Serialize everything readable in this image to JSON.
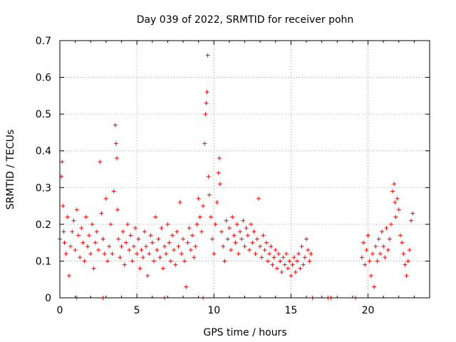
{
  "chart_data": {
    "type": "scatter",
    "title": "Day 039 of 2022, SRMTID for receiver pohn",
    "xlabel": "GPS time / hours",
    "ylabel": "SRMTID / TECUs",
    "xlim": [
      0,
      24
    ],
    "ylim": [
      0,
      0.7
    ],
    "xticks": [
      0,
      5,
      10,
      15,
      20
    ],
    "xtick_labels": [
      "0",
      "5",
      "10",
      "15",
      "20"
    ],
    "yticks": [
      0,
      0.1,
      0.2,
      0.3,
      0.4,
      0.5,
      0.6,
      0.7
    ],
    "ytick_labels": [
      "0",
      "0.1",
      "0.2",
      "0.3",
      "0.4",
      "0.5",
      "0.6",
      "0.7"
    ],
    "grid": true,
    "marker": "+",
    "marker_color": "#ff0000",
    "series": [
      {
        "name": "SRMTID",
        "x": [
          0.0,
          0.1,
          0.15,
          0.2,
          0.25,
          0.3,
          0.4,
          0.5,
          0.6,
          0.7,
          0.8,
          0.9,
          1.0,
          1.1,
          1.2,
          1.3,
          1.4,
          1.5,
          1.6,
          1.7,
          1.8,
          1.9,
          2.0,
          2.1,
          2.2,
          2.3,
          2.4,
          2.5,
          2.6,
          2.7,
          2.8,
          2.9,
          3.0,
          3.1,
          3.2,
          3.3,
          3.4,
          3.5,
          3.6,
          3.65,
          3.7,
          3.75,
          3.8,
          3.9,
          4.0,
          4.1,
          4.2,
          4.3,
          4.4,
          4.5,
          4.6,
          4.7,
          4.8,
          4.9,
          5.0,
          5.1,
          5.2,
          5.3,
          5.4,
          5.5,
          5.6,
          5.7,
          5.8,
          5.9,
          6.0,
          6.1,
          6.2,
          6.3,
          6.4,
          6.5,
          6.6,
          6.7,
          6.8,
          6.9,
          7.0,
          7.1,
          7.2,
          7.3,
          7.4,
          7.5,
          7.6,
          7.7,
          7.8,
          7.9,
          8.0,
          8.1,
          8.2,
          8.3,
          8.4,
          8.5,
          8.6,
          8.7,
          8.8,
          8.9,
          9.0,
          9.1,
          9.2,
          9.3,
          9.4,
          9.45,
          9.5,
          9.55,
          9.6,
          9.65,
          9.7,
          9.8,
          9.9,
          10.0,
          10.1,
          10.2,
          10.3,
          10.35,
          10.4,
          10.5,
          10.6,
          10.7,
          10.8,
          10.9,
          11.0,
          11.1,
          11.2,
          11.3,
          11.4,
          11.5,
          11.6,
          11.7,
          11.8,
          11.9,
          12.0,
          12.1,
          12.2,
          12.3,
          12.4,
          12.5,
          12.6,
          12.7,
          12.8,
          12.9,
          13.0,
          13.1,
          13.2,
          13.3,
          13.4,
          13.5,
          13.6,
          13.7,
          13.8,
          13.9,
          14.0,
          14.1,
          14.2,
          14.3,
          14.4,
          14.5,
          14.6,
          14.7,
          14.8,
          14.9,
          15.0,
          15.1,
          15.2,
          15.3,
          15.4,
          15.5,
          15.6,
          15.7,
          15.8,
          15.9,
          16.0,
          16.1,
          16.2,
          16.3,
          19.6,
          19.7,
          19.8,
          19.9,
          20.0,
          20.1,
          20.2,
          20.3,
          20.4,
          20.5,
          20.6,
          20.7,
          20.8,
          20.9,
          21.0,
          21.1,
          21.2,
          21.3,
          21.4,
          21.5,
          21.6,
          21.7,
          21.75,
          21.8,
          21.9,
          22.0,
          22.1,
          22.2,
          22.3,
          22.4,
          22.5,
          22.6,
          22.7,
          22.8,
          22.9
        ],
        "y": [
          0.16,
          0.33,
          0.37,
          0.25,
          0.18,
          0.15,
          0.12,
          0.22,
          0.06,
          0.14,
          0.18,
          0.21,
          0.13,
          0.24,
          0.17,
          0.11,
          0.19,
          0.15,
          0.1,
          0.22,
          0.14,
          0.17,
          0.12,
          0.2,
          0.08,
          0.15,
          0.18,
          0.13,
          0.37,
          0.23,
          0.16,
          0.12,
          0.27,
          0.1,
          0.14,
          0.2,
          0.12,
          0.29,
          0.47,
          0.42,
          0.38,
          0.24,
          0.16,
          0.11,
          0.14,
          0.18,
          0.09,
          0.15,
          0.2,
          0.13,
          0.17,
          0.1,
          0.14,
          0.19,
          0.12,
          0.16,
          0.08,
          0.13,
          0.11,
          0.18,
          0.14,
          0.06,
          0.12,
          0.17,
          0.15,
          0.1,
          0.22,
          0.13,
          0.16,
          0.11,
          0.19,
          0.08,
          0.14,
          0.12,
          0.2,
          0.15,
          0.1,
          0.17,
          0.13,
          0.09,
          0.18,
          0.14,
          0.26,
          0.12,
          0.16,
          0.1,
          0.03,
          0.15,
          0.19,
          0.13,
          0.17,
          0.11,
          0.14,
          0.2,
          0.27,
          0.22,
          0.18,
          0.25,
          0.42,
          0.5,
          0.53,
          0.56,
          0.66,
          0.33,
          0.28,
          0.22,
          0.16,
          0.12,
          0.2,
          0.26,
          0.34,
          0.38,
          0.31,
          0.18,
          0.14,
          0.1,
          0.21,
          0.16,
          0.19,
          0.13,
          0.22,
          0.17,
          0.15,
          0.2,
          0.12,
          0.18,
          0.16,
          0.21,
          0.14,
          0.19,
          0.17,
          0.13,
          0.2,
          0.15,
          0.18,
          0.12,
          0.16,
          0.27,
          0.14,
          0.11,
          0.17,
          0.13,
          0.15,
          0.1,
          0.12,
          0.14,
          0.09,
          0.11,
          0.13,
          0.08,
          0.12,
          0.1,
          0.07,
          0.11,
          0.09,
          0.12,
          0.08,
          0.1,
          0.06,
          0.09,
          0.11,
          0.07,
          0.1,
          0.12,
          0.08,
          0.14,
          0.09,
          0.11,
          0.16,
          0.13,
          0.1,
          0.12,
          0.11,
          0.15,
          0.09,
          0.13,
          0.17,
          0.1,
          0.06,
          0.12,
          0.03,
          0.14,
          0.1,
          0.16,
          0.12,
          0.18,
          0.14,
          0.11,
          0.19,
          0.13,
          0.16,
          0.2,
          0.29,
          0.31,
          0.26,
          0.22,
          0.27,
          0.24,
          0.17,
          0.15,
          0.12,
          0.09,
          0.06,
          0.1,
          0.13,
          0.21,
          0.23
        ]
      }
    ],
    "baseline_markers_x": [
      1.1,
      2.8,
      6.8,
      9.3,
      16.4,
      17.4,
      17.6,
      19.2
    ],
    "baseline_markers_y": [
      0,
      0,
      0,
      0,
      0,
      0,
      0,
      0
    ]
  }
}
